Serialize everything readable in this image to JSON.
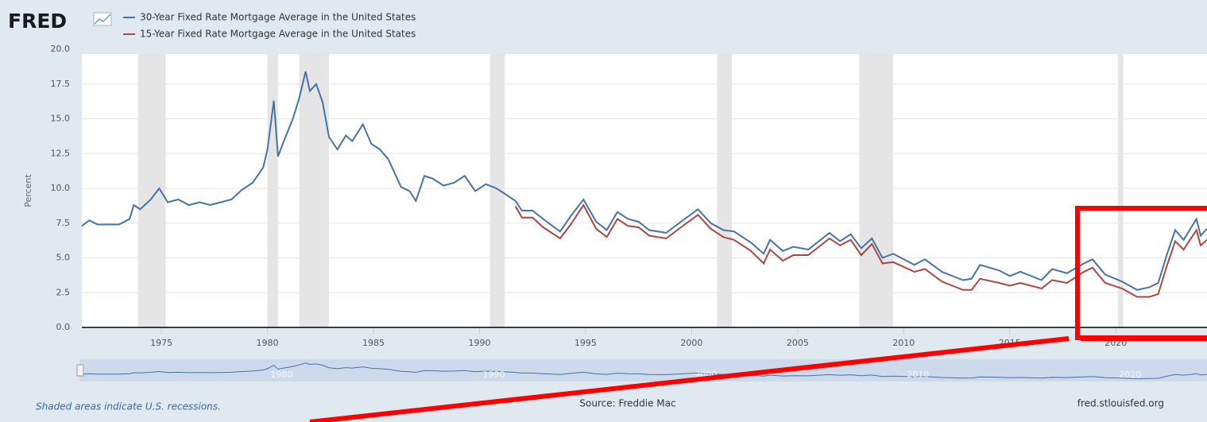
{
  "chart_data": {
    "type": "line",
    "logo": "FRED",
    "ylabel": "Percent",
    "note": "Shaded areas indicate U.S. recessions.",
    "source": "Source: Freddie Mac",
    "site": "fred.stlouisfed.org",
    "xlim": [
      1971.25,
      2024.3
    ],
    "xticks": [
      1975,
      1980,
      1985,
      1990,
      1995,
      2000,
      2005,
      2010,
      2015,
      2020
    ],
    "ylim": [
      0,
      20
    ],
    "yticks": [
      {
        "value": 0,
        "label": "0.0"
      },
      {
        "value": 2.5,
        "label": "2.5"
      },
      {
        "value": 5,
        "label": "5.0"
      },
      {
        "value": 7.5,
        "label": "7.5"
      },
      {
        "value": 10,
        "label": "10.0"
      },
      {
        "value": 12.5,
        "label": "12.5"
      },
      {
        "value": 15,
        "label": "15.0"
      },
      {
        "value": 17.5,
        "label": "17.5"
      },
      {
        "value": 20,
        "label": "20.0"
      }
    ],
    "grid": true,
    "navigator_ticks": [
      1980,
      1990,
      2000,
      2010,
      2020
    ],
    "recessions": [
      [
        1973.9,
        1975.2
      ],
      [
        1980.0,
        1980.5
      ],
      [
        1981.5,
        1982.9
      ],
      [
        1990.5,
        1991.2
      ],
      [
        2001.2,
        2001.9
      ],
      [
        2007.9,
        2009.5
      ],
      [
        2020.1,
        2020.35
      ]
    ],
    "x": [
      1971.25,
      1971.6,
      1972.0,
      1972.5,
      1973.0,
      1973.5,
      1973.7,
      1974.0,
      1974.5,
      1974.9,
      1975.3,
      1975.8,
      1976.3,
      1976.8,
      1977.3,
      1977.8,
      1978.3,
      1978.8,
      1979.3,
      1979.8,
      1980.0,
      1980.3,
      1980.5,
      1980.8,
      1981.2,
      1981.5,
      1981.8,
      1982.0,
      1982.3,
      1982.6,
      1982.9,
      1983.3,
      1983.7,
      1984.0,
      1984.5,
      1984.9,
      1985.3,
      1985.7,
      1986.3,
      1986.7,
      1987.0,
      1987.4,
      1987.8,
      1988.3,
      1988.8,
      1989.3,
      1989.8,
      1990.3,
      1990.8,
      1991.3,
      1991.7,
      1992.0,
      1992.5,
      1993.0,
      1993.8,
      1994.3,
      1994.9,
      1995.5,
      1996.0,
      1996.5,
      1997.0,
      1997.5,
      1998.0,
      1998.8,
      1999.5,
      2000.3,
      2000.9,
      2001.5,
      2002.0,
      2002.8,
      2003.4,
      2003.7,
      2004.3,
      2004.8,
      2005.5,
      2006.5,
      2007.0,
      2007.5,
      2008.0,
      2008.5,
      2009.0,
      2009.5,
      2010.5,
      2011.0,
      2011.8,
      2012.8,
      2013.2,
      2013.6,
      2014.5,
      2015.0,
      2015.5,
      2016.5,
      2017.0,
      2017.7,
      2018.5,
      2018.9,
      2019.5,
      2020.3,
      2021.0,
      2021.6,
      2022.0,
      2022.4,
      2022.8,
      2023.2,
      2023.8,
      2024.0,
      2024.3
    ],
    "series": [
      {
        "name": "30-Year Fixed Rate Mortgage Average in the United States",
        "color": "#4572a7",
        "values": [
          7.3,
          7.7,
          7.4,
          7.4,
          7.4,
          7.8,
          8.8,
          8.5,
          9.2,
          10.0,
          9.0,
          9.2,
          8.8,
          9.0,
          8.8,
          9.0,
          9.2,
          9.9,
          10.4,
          11.5,
          12.8,
          16.3,
          12.3,
          13.5,
          15.0,
          16.5,
          18.4,
          17.0,
          17.5,
          16.2,
          13.7,
          12.8,
          13.8,
          13.4,
          14.6,
          13.2,
          12.8,
          12.1,
          10.1,
          9.8,
          9.1,
          10.9,
          10.7,
          10.2,
          10.4,
          10.9,
          9.8,
          10.3,
          10.0,
          9.5,
          9.1,
          8.4,
          8.4,
          7.8,
          6.9,
          8.0,
          9.2,
          7.6,
          7.0,
          8.3,
          7.8,
          7.6,
          7.0,
          6.8,
          7.6,
          8.5,
          7.5,
          7.0,
          6.9,
          6.1,
          5.3,
          6.3,
          5.5,
          5.8,
          5.6,
          6.8,
          6.2,
          6.7,
          5.7,
          6.4,
          5.0,
          5.3,
          4.5,
          4.9,
          4.0,
          3.4,
          3.5,
          4.5,
          4.1,
          3.7,
          4.0,
          3.4,
          4.2,
          3.9,
          4.6,
          4.9,
          3.8,
          3.3,
          2.7,
          2.9,
          3.2,
          5.2,
          7.0,
          6.3,
          7.8,
          6.6,
          7.1
        ]
      },
      {
        "name": "15-Year Fixed Rate Mortgage Average in the United States",
        "color": "#aa4643",
        "values": [
          null,
          null,
          null,
          null,
          null,
          null,
          null,
          null,
          null,
          null,
          null,
          null,
          null,
          null,
          null,
          null,
          null,
          null,
          null,
          null,
          null,
          null,
          null,
          null,
          null,
          null,
          null,
          null,
          null,
          null,
          null,
          null,
          null,
          null,
          null,
          null,
          null,
          null,
          null,
          null,
          null,
          null,
          null,
          null,
          null,
          null,
          null,
          null,
          null,
          null,
          8.7,
          7.9,
          7.9,
          7.2,
          6.4,
          7.4,
          8.8,
          7.1,
          6.5,
          7.8,
          7.3,
          7.2,
          6.6,
          6.4,
          7.2,
          8.1,
          7.1,
          6.5,
          6.3,
          5.5,
          4.6,
          5.6,
          4.8,
          5.2,
          5.2,
          6.4,
          5.9,
          6.3,
          5.2,
          6.0,
          4.6,
          4.7,
          4.0,
          4.2,
          3.3,
          2.7,
          2.7,
          3.5,
          3.2,
          3.0,
          3.2,
          2.8,
          3.4,
          3.2,
          4.0,
          4.3,
          3.2,
          2.8,
          2.2,
          2.2,
          2.4,
          4.4,
          6.2,
          5.6,
          7.0,
          5.9,
          6.3
        ]
      }
    ]
  }
}
